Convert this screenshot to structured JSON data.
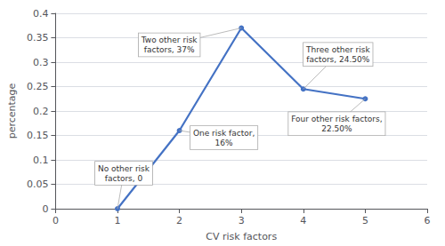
{
  "chart_data": {
    "type": "line",
    "x": [
      1,
      2,
      3,
      4,
      5
    ],
    "values": [
      0.0,
      0.16,
      0.37,
      0.245,
      0.225
    ],
    "color": "#4472C4",
    "marker": "circle",
    "xlabel": "CV risk factors",
    "ylabel": "percentage",
    "xlim": [
      0,
      6
    ],
    "ylim": [
      0,
      0.4
    ],
    "xticks": [
      0,
      1,
      2,
      3,
      4,
      5,
      6
    ],
    "yticks": [
      0,
      0.05,
      0.1,
      0.15,
      0.2,
      0.25,
      0.3,
      0.35,
      0.4
    ],
    "grid": true,
    "annotations": [
      {
        "text": "No other risk\nfactors, 0",
        "x": 1,
        "y": 0.0
      },
      {
        "text": "Two other risk\nfactors, 37%",
        "x": 3,
        "y": 0.37
      },
      {
        "text": "One risk factor,\n16%",
        "x": 2,
        "y": 0.16
      },
      {
        "text": "Three other risk\nfactors, 24.50%",
        "x": 4,
        "y": 0.245
      },
      {
        "text": "Four other risk factors,\n22.50%",
        "x": 5,
        "y": 0.225
      }
    ]
  }
}
